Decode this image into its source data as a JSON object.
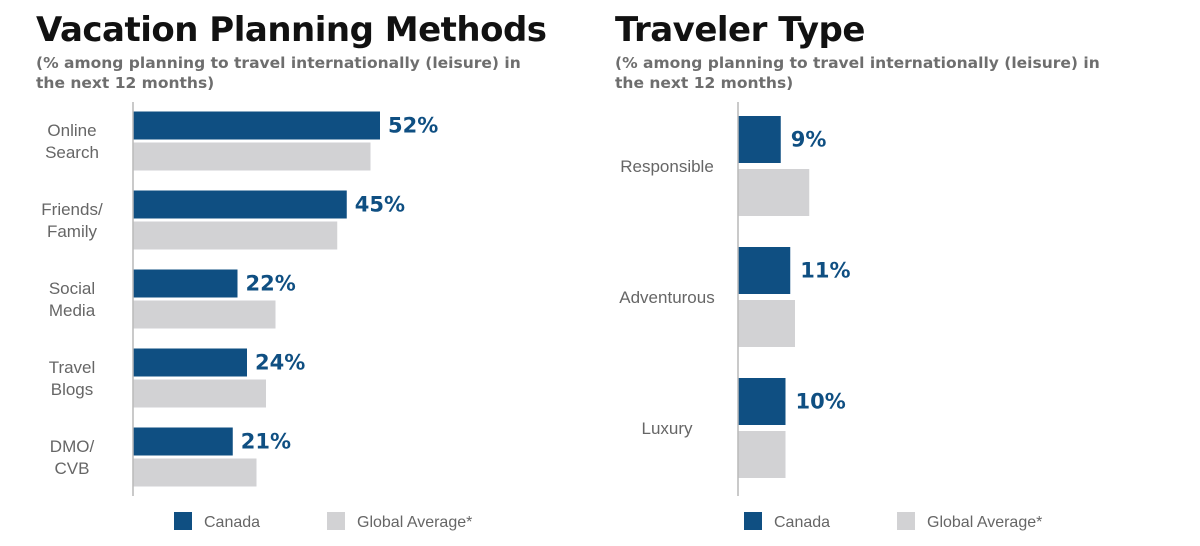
{
  "colors": {
    "canada": "#0f4f82",
    "global": "#d2d2d4",
    "axis": "#b9b9b9",
    "value_text": "#0f4f82"
  },
  "chart_data": [
    {
      "type": "bar",
      "orientation": "horizontal",
      "title": "Vacation Planning Methods",
      "subtitle": "(% among planning to travel internationally (leisure) in the next 12 months)",
      "categories": [
        [
          "Online",
          "Search"
        ],
        [
          "Friends/",
          "Family"
        ],
        [
          "Social",
          "Media"
        ],
        [
          "Travel",
          "Blogs"
        ],
        [
          "DMO/",
          "CVB"
        ]
      ],
      "series": [
        {
          "name": "Canada",
          "values": [
            52,
            45,
            22,
            24,
            21
          ],
          "labels": [
            "52%",
            "45%",
            "22%",
            "24%",
            "21%"
          ]
        },
        {
          "name": "Global Average*",
          "values": [
            50,
            43,
            30,
            28,
            26
          ]
        }
      ],
      "xlim": [
        0,
        80
      ],
      "legend_position": "bottom",
      "grid": false
    },
    {
      "type": "bar",
      "orientation": "horizontal",
      "title": "Traveler Type",
      "subtitle": "(% among planning to travel internationally (leisure) in the next 12 months)",
      "categories": [
        [
          "Responsible"
        ],
        [
          "Adventurous"
        ],
        [
          "Luxury"
        ]
      ],
      "series": [
        {
          "name": "Canada",
          "values": [
            9,
            11,
            10
          ],
          "labels": [
            "9%",
            "11%",
            "10%"
          ]
        },
        {
          "name": "Global Average*",
          "values": [
            15,
            12,
            10
          ]
        }
      ],
      "xlim": [
        0,
        80
      ],
      "legend_position": "bottom",
      "grid": false
    }
  ]
}
